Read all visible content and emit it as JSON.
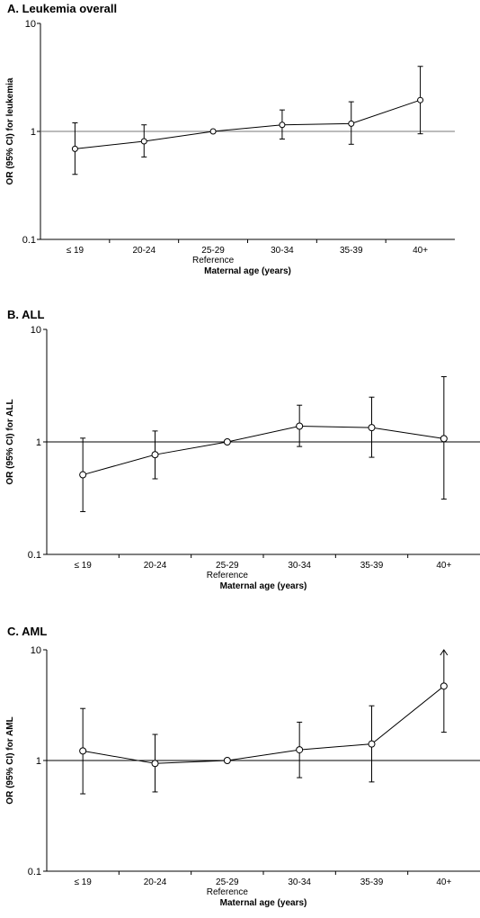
{
  "chart_data": [
    {
      "type": "line",
      "title": "A. Leukemia overall",
      "ylabel": "OR (95% CI) for leukemia",
      "xlabel": "Maternal age (years)",
      "categories": [
        "≤ 19",
        "20-24",
        "25-29",
        "30-34",
        "35-39",
        "40+"
      ],
      "reference_label": "Reference",
      "reference_category": "25-29",
      "yscale": "log",
      "ylim": [
        0.1,
        10
      ],
      "yticks": [
        "0.1",
        "1",
        "10"
      ],
      "reference_line": 1,
      "series": [
        {
          "or": [
            0.69,
            0.81,
            1.0,
            1.15,
            1.18,
            1.95
          ],
          "lower": [
            0.4,
            0.58,
            1.0,
            0.85,
            0.76,
            0.95
          ],
          "upper": [
            1.2,
            1.15,
            1.0,
            1.58,
            1.88,
            4.0
          ]
        }
      ],
      "arrow_at": null
    },
    {
      "type": "line",
      "title": "B. ALL",
      "ylabel": "OR (95% CI) for ALL",
      "xlabel": "Maternal age (years)",
      "categories": [
        "≤ 19",
        "20-24",
        "25-29",
        "30-34",
        "35-39",
        "40+"
      ],
      "reference_label": "Reference",
      "reference_category": "25-29",
      "yscale": "log",
      "ylim": [
        0.1,
        10
      ],
      "yticks": [
        "0.1",
        "1",
        "10"
      ],
      "reference_line": 1,
      "series": [
        {
          "or": [
            0.51,
            0.77,
            1.0,
            1.38,
            1.34,
            1.07
          ],
          "lower": [
            0.24,
            0.47,
            1.0,
            0.91,
            0.73,
            0.31
          ],
          "upper": [
            1.08,
            1.25,
            1.0,
            2.12,
            2.5,
            3.8
          ]
        }
      ],
      "arrow_at": null
    },
    {
      "type": "line",
      "title": "C. AML",
      "ylabel": "OR (95% CI) for AML",
      "xlabel": "Maternal age (years)",
      "categories": [
        "≤ 19",
        "20-24",
        "25-29",
        "30-34",
        "35-39",
        "40+"
      ],
      "reference_label": "Reference",
      "reference_category": "25-29",
      "yscale": "log",
      "ylim": [
        0.1,
        10
      ],
      "yticks": [
        "0.1",
        "1",
        "10"
      ],
      "reference_line": 1,
      "series": [
        {
          "or": [
            1.22,
            0.94,
            1.0,
            1.25,
            1.41,
            4.7
          ],
          "lower": [
            0.5,
            0.52,
            1.0,
            0.7,
            0.64,
            1.8
          ],
          "upper": [
            2.95,
            1.72,
            1.0,
            2.22,
            3.12,
            10.0
          ]
        }
      ],
      "arrow_at": 5
    }
  ]
}
